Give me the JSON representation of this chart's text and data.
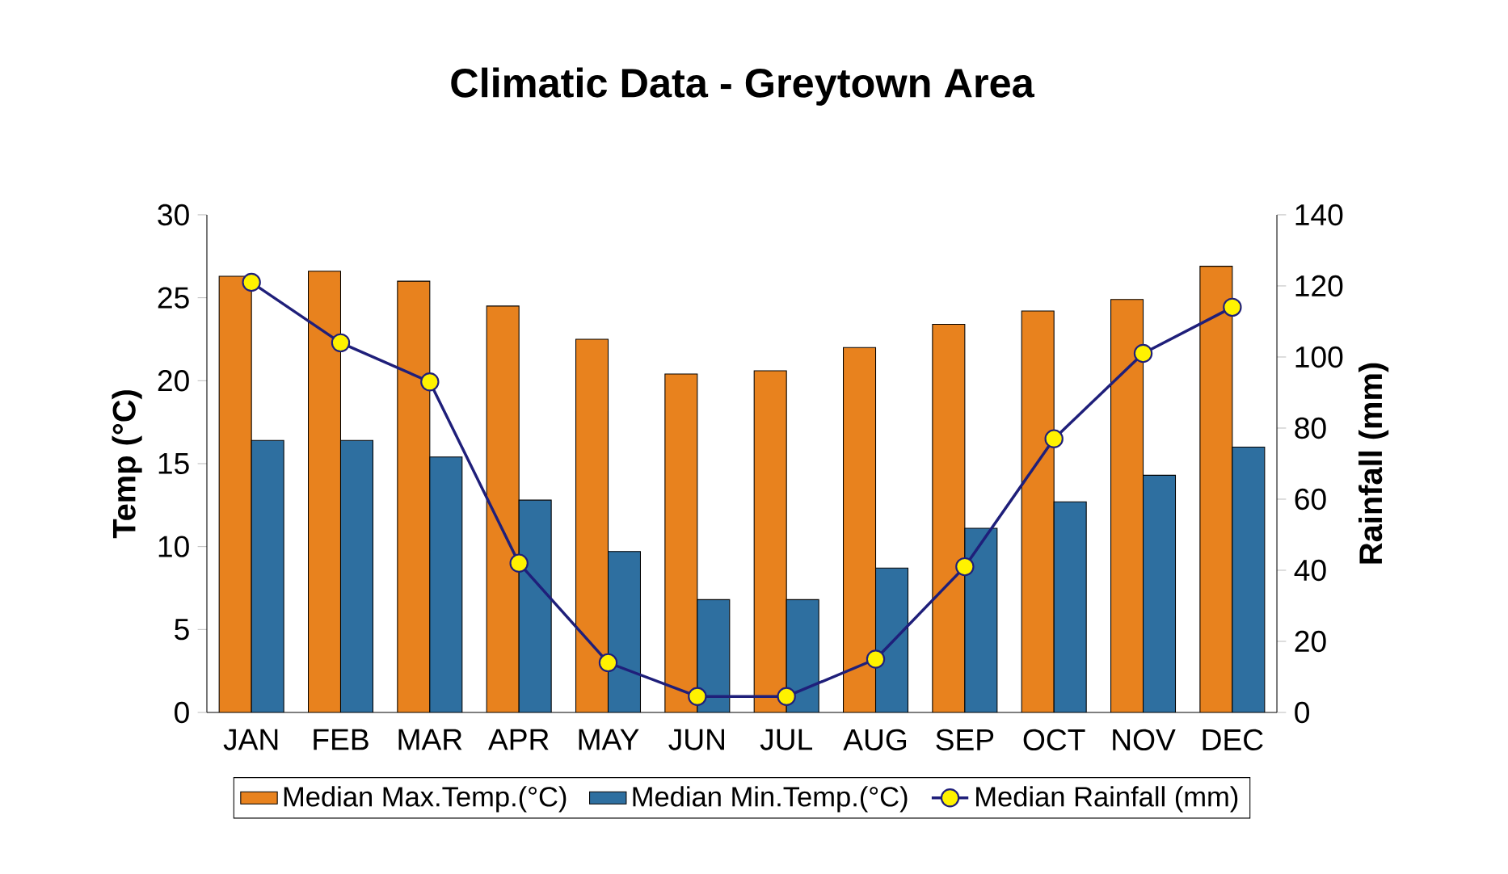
{
  "chart_data": {
    "type": "bar",
    "title": "Climatic Data - Greytown Area",
    "ylabel": "Temp (°C)",
    "y2label": "Rainfall (mm)",
    "categories": [
      "JAN",
      "FEB",
      "MAR",
      "APR",
      "MAY",
      "JUN",
      "JUL",
      "AUG",
      "SEP",
      "OCT",
      "NOV",
      "DEC"
    ],
    "series": [
      {
        "name": "Median Max.Temp.(°C)",
        "color": "#e8821e",
        "values": [
          26.3,
          26.6,
          26.0,
          24.5,
          22.5,
          20.4,
          20.6,
          22.0,
          23.4,
          24.2,
          24.9,
          26.9
        ]
      },
      {
        "name": "Median Min.Temp.(°C)",
        "color": "#2e6fa0",
        "values": [
          16.4,
          16.4,
          15.4,
          12.8,
          9.7,
          6.8,
          6.8,
          8.7,
          11.1,
          12.7,
          14.3,
          16.0
        ]
      },
      {
        "name": "Median Rainfall (mm)",
        "type": "line",
        "axis": "y2",
        "marker": "circle",
        "color": "#1f1f7a",
        "values": [
          121,
          104,
          93,
          42,
          14,
          4.5,
          4.5,
          15,
          41,
          77,
          101,
          114
        ]
      }
    ],
    "ylim": [
      0,
      30
    ],
    "yticks": [
      0,
      5,
      10,
      15,
      20,
      25,
      30
    ],
    "y2lim": [
      0,
      140
    ],
    "y2ticks": [
      0,
      20,
      40,
      60,
      80,
      100,
      120,
      140
    ],
    "legend": "bottom"
  }
}
